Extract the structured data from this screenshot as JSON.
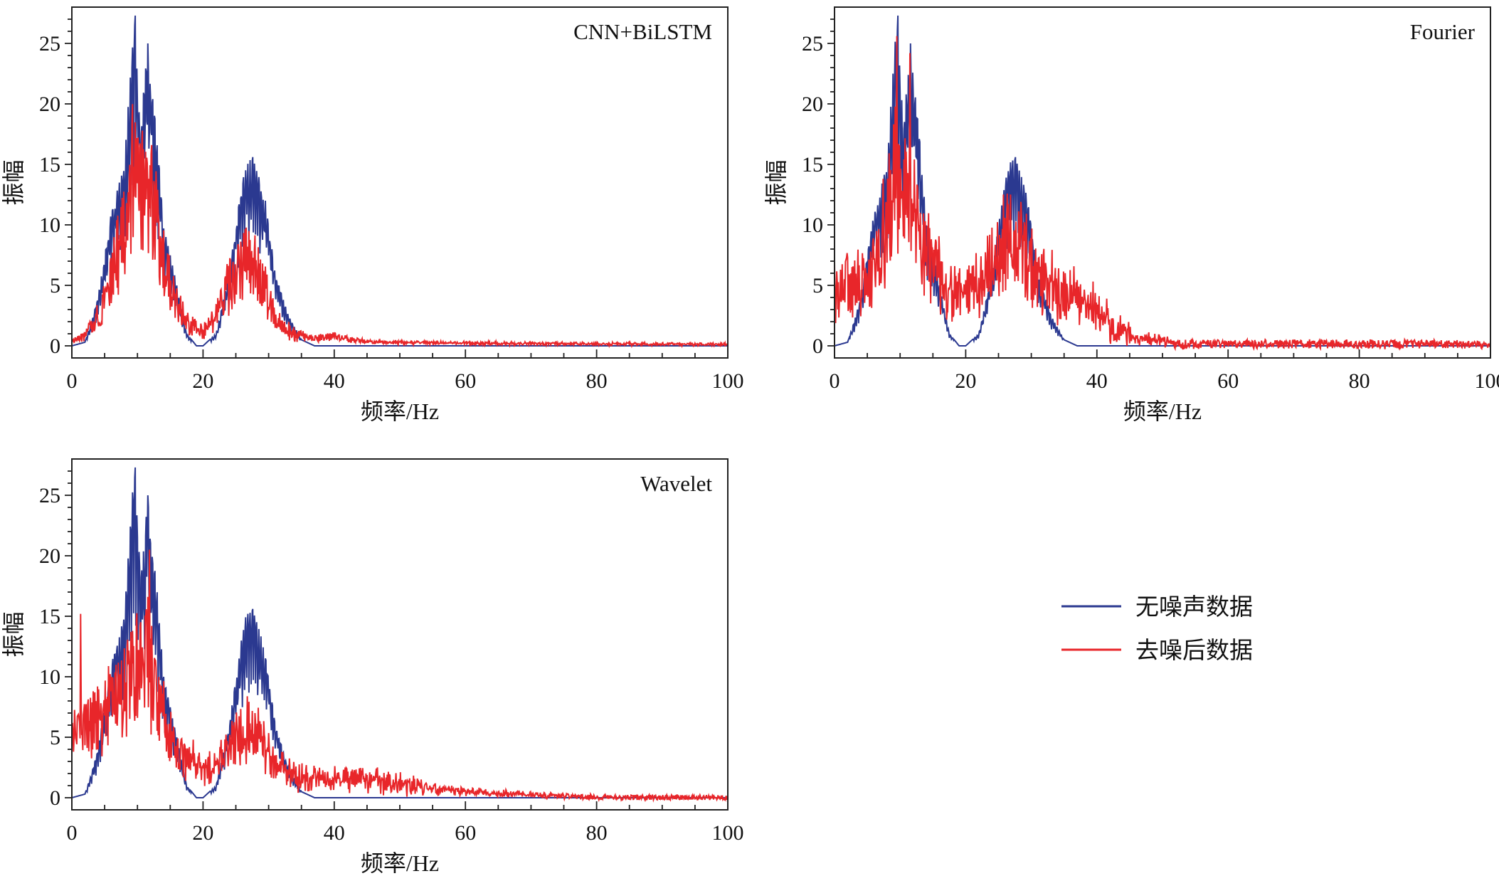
{
  "chart_data": [
    {
      "type": "line",
      "title": "CNN+BiLSTM",
      "xlabel": "频率/Hz",
      "ylabel": "振幅",
      "xlim": [
        0,
        100
      ],
      "ylim": [
        -1,
        28
      ],
      "xticks": [
        0,
        20,
        40,
        60,
        80,
        100
      ],
      "yticks": [
        0,
        5,
        10,
        15,
        20,
        25
      ],
      "x_tick_labels": [
        "0",
        "20",
        "40",
        "60",
        "80",
        "100"
      ],
      "y_tick_labels": [
        "0",
        "5",
        "10",
        "15",
        "20",
        "25"
      ],
      "series": [
        {
          "name": "无噪声数据",
          "color": "#2b3990",
          "envelope": [
            [
              0,
              0
            ],
            [
              2,
              0.3
            ],
            [
              3,
              2
            ],
            [
              4,
              4
            ],
            [
              6,
              11
            ],
            [
              8,
              15
            ],
            [
              9.5,
              27.3
            ],
            [
              10.5,
              18
            ],
            [
              11.5,
              25
            ],
            [
              13,
              17
            ],
            [
              14,
              10
            ],
            [
              16,
              5
            ],
            [
              17.5,
              1
            ],
            [
              19,
              0
            ],
            [
              20,
              0
            ],
            [
              22,
              1
            ],
            [
              24,
              6
            ],
            [
              25.5,
              12
            ],
            [
              26.5,
              15
            ],
            [
              27.5,
              15.6
            ],
            [
              28.5,
              14
            ],
            [
              29.5,
              12
            ],
            [
              31,
              6
            ],
            [
              33,
              2.5
            ],
            [
              35,
              0.5
            ],
            [
              37,
              0
            ],
            [
              100,
              0
            ]
          ],
          "peaks": [
            [
              9.7,
              27.3
            ],
            [
              11.6,
              25
            ],
            [
              27.6,
              15.6
            ]
          ]
        },
        {
          "name": "去噪后数据",
          "color": "#e8262a",
          "envelope": [
            [
              0,
              0.5
            ],
            [
              2,
              1
            ],
            [
              4,
              3
            ],
            [
              6,
              7
            ],
            [
              8,
              11
            ],
            [
              9.7,
              19
            ],
            [
              11.2,
              14
            ],
            [
              12.3,
              14.5
            ],
            [
              14,
              8
            ],
            [
              16,
              4
            ],
            [
              18,
              2
            ],
            [
              20,
              1.5
            ],
            [
              22,
              3
            ],
            [
              24,
              6
            ],
            [
              26,
              8
            ],
            [
              27.3,
              8.5
            ],
            [
              29,
              6
            ],
            [
              31,
              3
            ],
            [
              33,
              1.5
            ],
            [
              36,
              0.8
            ],
            [
              40,
              0.9
            ],
            [
              45,
              0.4
            ],
            [
              60,
              0.25
            ],
            [
              80,
              0.2
            ],
            [
              100,
              0.15
            ]
          ],
          "noise_amplitude": 0.22
        }
      ]
    },
    {
      "type": "line",
      "title": "Fourier",
      "xlabel": "频率/Hz",
      "ylabel": "振幅",
      "xlim": [
        0,
        100
      ],
      "ylim": [
        -1,
        28
      ],
      "xticks": [
        0,
        20,
        40,
        60,
        80,
        100
      ],
      "yticks": [
        0,
        5,
        10,
        15,
        20,
        25
      ],
      "x_tick_labels": [
        "0",
        "20",
        "40",
        "60",
        "80",
        "100"
      ],
      "y_tick_labels": [
        "0",
        "5",
        "10",
        "15",
        "20",
        "25"
      ],
      "series": [
        {
          "name": "无噪声数据",
          "color": "#2b3990",
          "envelope": [
            [
              0,
              0
            ],
            [
              2,
              0.3
            ],
            [
              3,
              2
            ],
            [
              4,
              4
            ],
            [
              6,
              11
            ],
            [
              8,
              15
            ],
            [
              9.5,
              27.3
            ],
            [
              10.5,
              18
            ],
            [
              11.5,
              25
            ],
            [
              13,
              17
            ],
            [
              14,
              10
            ],
            [
              16,
              5
            ],
            [
              17.5,
              1
            ],
            [
              19,
              0
            ],
            [
              20,
              0
            ],
            [
              22,
              1
            ],
            [
              24,
              6
            ],
            [
              25.5,
              12
            ],
            [
              26.5,
              15
            ],
            [
              27.5,
              15.6
            ],
            [
              28.5,
              14
            ],
            [
              29.5,
              12
            ],
            [
              31,
              6
            ],
            [
              33,
              2.5
            ],
            [
              35,
              0.5
            ],
            [
              37,
              0
            ],
            [
              100,
              0
            ]
          ],
          "peaks": [
            [
              9.7,
              27.3
            ],
            [
              11.6,
              25
            ],
            [
              27.6,
              15.6
            ]
          ]
        },
        {
          "name": "去噪后数据",
          "color": "#e8262a",
          "envelope": [
            [
              0,
              6
            ],
            [
              2,
              6
            ],
            [
              4,
              6
            ],
            [
              6,
              9
            ],
            [
              8,
              13
            ],
            [
              9.5,
              17
            ],
            [
              11,
              16
            ],
            [
              13,
              11
            ],
            [
              15,
              8
            ],
            [
              17,
              6
            ],
            [
              19,
              5
            ],
            [
              21,
              6
            ],
            [
              23,
              7
            ],
            [
              25,
              10
            ],
            [
              27,
              11
            ],
            [
              29,
              9
            ],
            [
              31,
              7
            ],
            [
              33,
              6
            ],
            [
              35,
              5
            ],
            [
              38,
              4.5
            ],
            [
              40,
              3.5
            ],
            [
              43,
              1.5
            ],
            [
              46,
              0.8
            ],
            [
              50,
              0.5
            ],
            [
              52,
              0.2
            ],
            [
              100,
              0.15
            ]
          ],
          "noise_amplitude": 0.9,
          "peaks": [
            [
              9.5,
              25.6
            ],
            [
              11.5,
              24.2
            ]
          ]
        }
      ]
    },
    {
      "type": "line",
      "title": "Wavelet",
      "xlabel": "频率/Hz",
      "ylabel": "振幅",
      "xlim": [
        0,
        100
      ],
      "ylim": [
        -1,
        28
      ],
      "xticks": [
        0,
        20,
        40,
        60,
        80,
        100
      ],
      "yticks": [
        0,
        5,
        10,
        15,
        20,
        25
      ],
      "x_tick_labels": [
        "0",
        "20",
        "40",
        "60",
        "80",
        "100"
      ],
      "y_tick_labels": [
        "0",
        "5",
        "10",
        "15",
        "20",
        "25"
      ],
      "series": [
        {
          "name": "无噪声数据",
          "color": "#2b3990",
          "envelope": [
            [
              0,
              0
            ],
            [
              2,
              0.3
            ],
            [
              3,
              2
            ],
            [
              4,
              4
            ],
            [
              6,
              11
            ],
            [
              8,
              15
            ],
            [
              9.5,
              27.3
            ],
            [
              10.5,
              18
            ],
            [
              11.5,
              25
            ],
            [
              13,
              17
            ],
            [
              14,
              10
            ],
            [
              16,
              5
            ],
            [
              17.5,
              1
            ],
            [
              19,
              0
            ],
            [
              20,
              0
            ],
            [
              22,
              1
            ],
            [
              24,
              6
            ],
            [
              25.5,
              12
            ],
            [
              26.5,
              15
            ],
            [
              27.5,
              15.6
            ],
            [
              28.5,
              14
            ],
            [
              29.5,
              12
            ],
            [
              31,
              6
            ],
            [
              33,
              2.5
            ],
            [
              35,
              0.5
            ],
            [
              37,
              0
            ],
            [
              100,
              0
            ]
          ],
          "peaks": [
            [
              9.7,
              27.3
            ],
            [
              11.6,
              25
            ],
            [
              27.6,
              15.6
            ]
          ]
        },
        {
          "name": "去噪后数据",
          "color": "#e8262a",
          "envelope": [
            [
              0,
              6
            ],
            [
              2,
              7
            ],
            [
              4,
              8
            ],
            [
              6,
              9
            ],
            [
              8,
              11
            ],
            [
              10,
              13
            ],
            [
              11.5,
              14
            ],
            [
              13,
              10
            ],
            [
              15,
              6
            ],
            [
              17,
              4
            ],
            [
              19,
              3.5
            ],
            [
              21,
              3
            ],
            [
              23,
              4
            ],
            [
              25,
              6
            ],
            [
              27,
              7
            ],
            [
              29,
              5.5
            ],
            [
              31,
              3.5
            ],
            [
              33,
              2.5
            ],
            [
              35,
              2
            ],
            [
              40,
              2
            ],
            [
              45,
              1.8
            ],
            [
              50,
              1.3
            ],
            [
              55,
              0.9
            ],
            [
              60,
              0.6
            ],
            [
              65,
              0.4
            ],
            [
              70,
              0.3
            ],
            [
              75,
              0.15
            ],
            [
              80,
              0.05
            ],
            [
              100,
              0
            ]
          ],
          "noise_amplitude": 0.55,
          "peaks": [
            [
              11.8,
              20.5
            ],
            [
              1.3,
              15.2
            ]
          ]
        }
      ]
    }
  ],
  "legend": {
    "items": [
      {
        "label": "无噪声数据",
        "color": "#2b3990"
      },
      {
        "label": "去噪后数据",
        "color": "#e8262a"
      }
    ]
  }
}
